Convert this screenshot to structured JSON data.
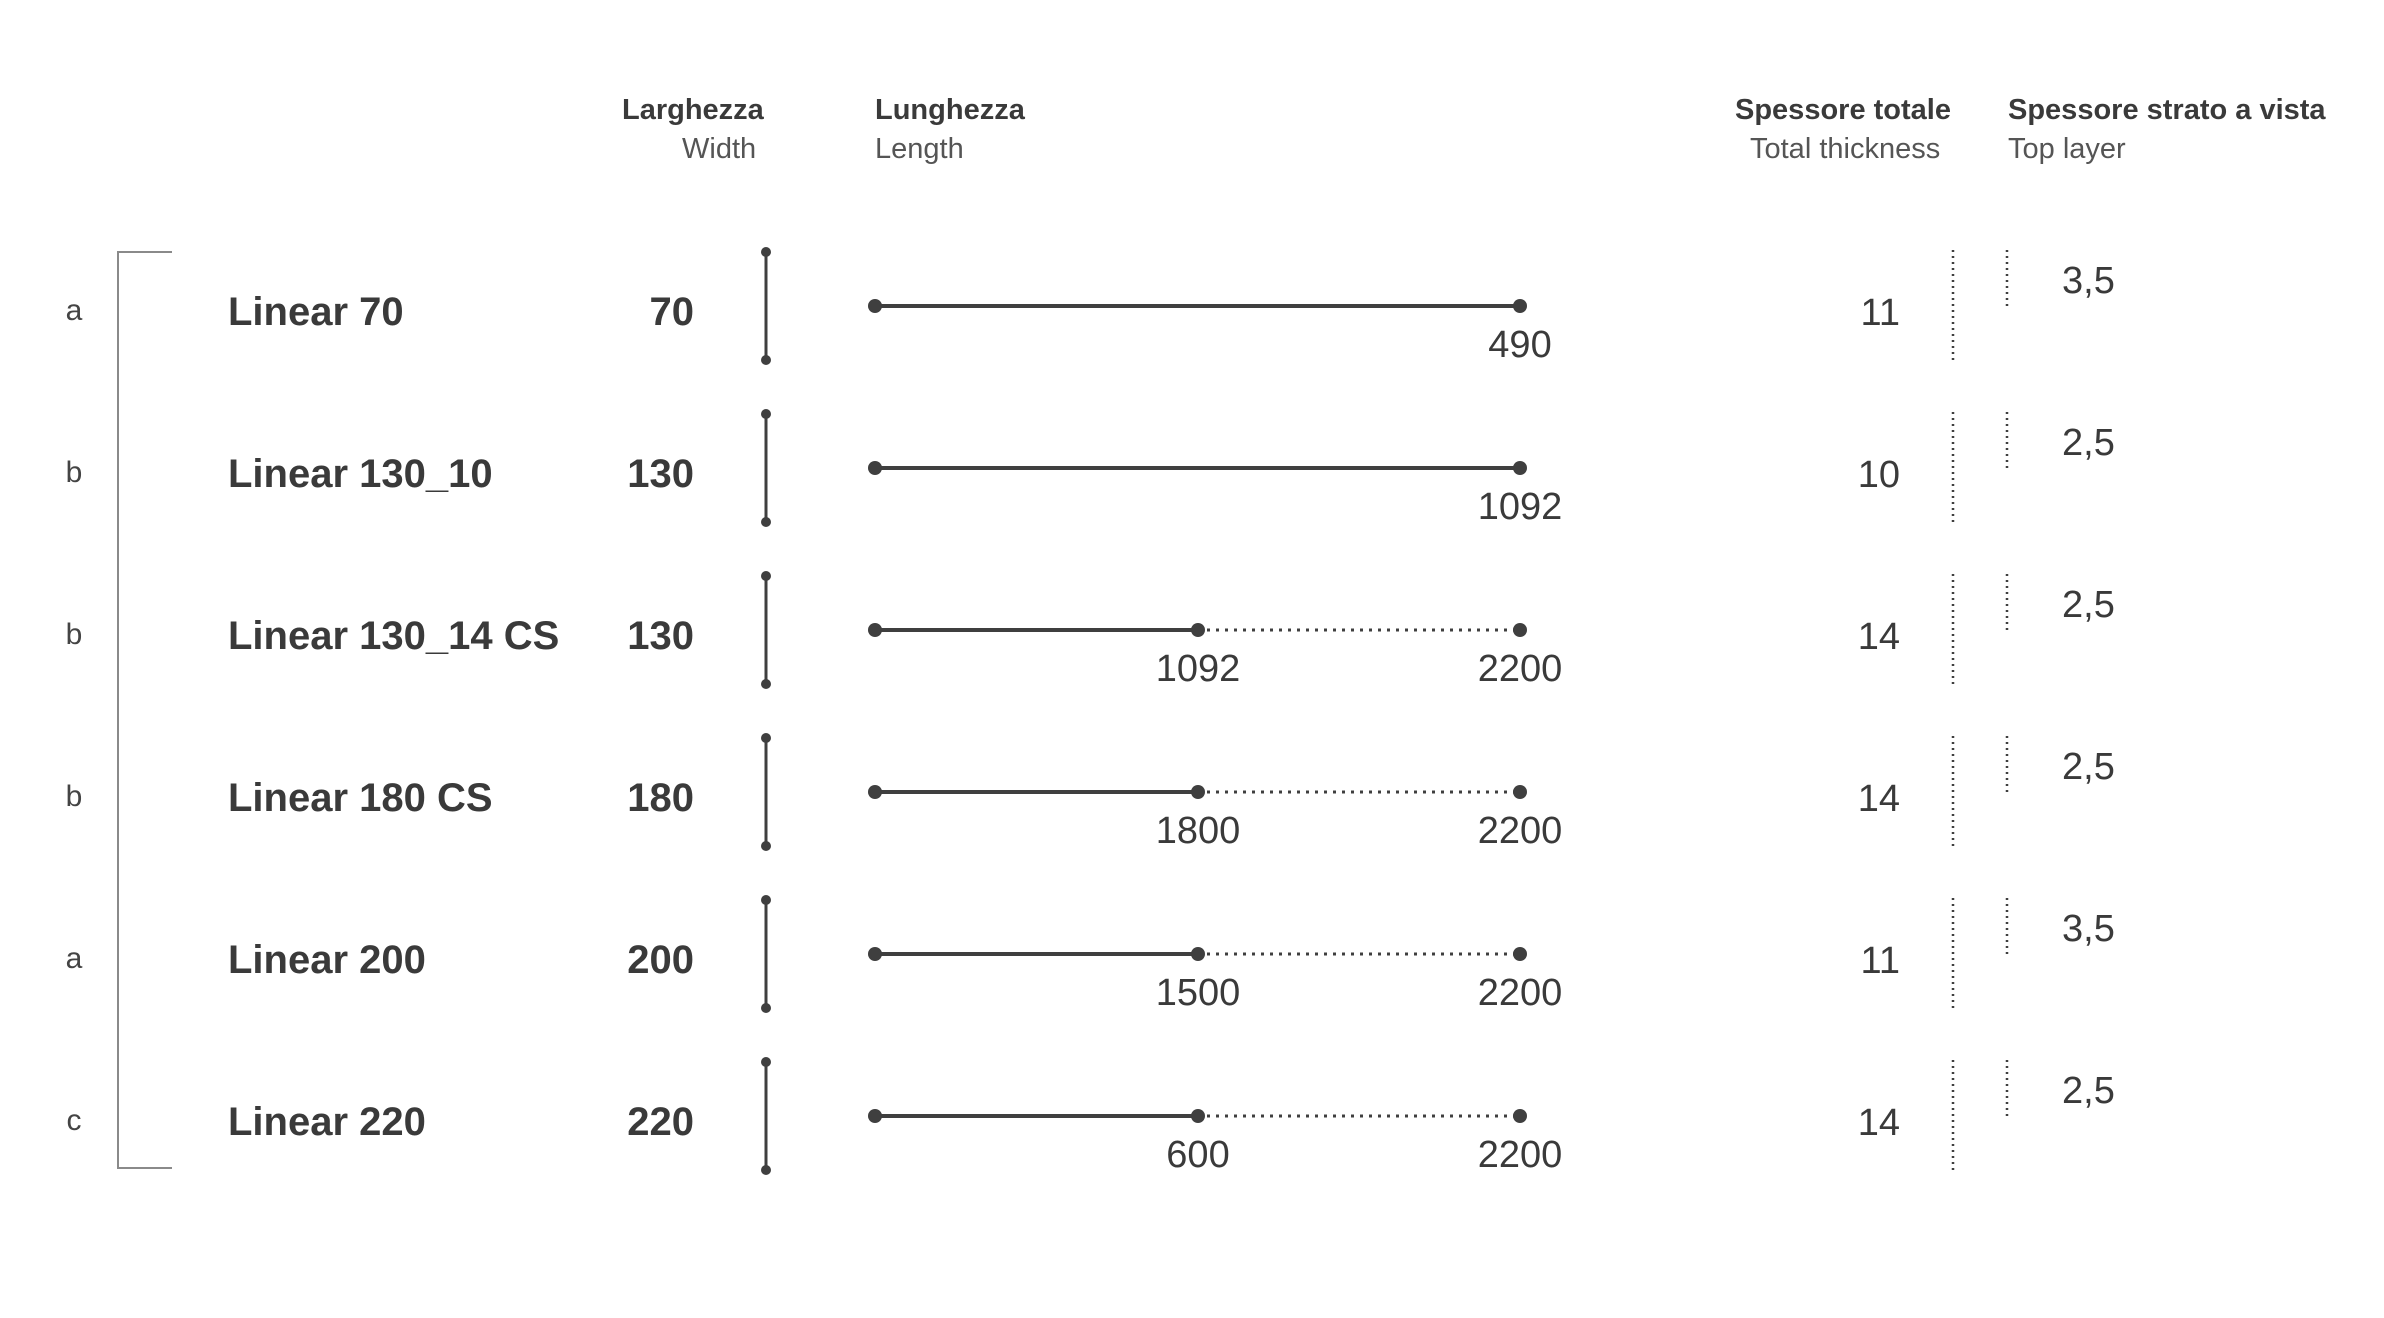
{
  "headers": {
    "width_it": "Larghezza",
    "width_en": "Width",
    "length_it": "Lunghezza",
    "length_en": "Length",
    "thickness_it": "Spessore totale",
    "thickness_en": "Total thickness",
    "toplayer_it": "Spessore strato a vista",
    "toplayer_en": "Top layer"
  },
  "rows": [
    {
      "class": "a",
      "name": "Linear 70",
      "width": "70",
      "len_min": null,
      "len_max": "490",
      "thickness": "11",
      "top_layer": "3,5"
    },
    {
      "class": "b",
      "name": "Linear 130_10",
      "width": "130",
      "len_min": null,
      "len_max": "1092",
      "thickness": "10",
      "top_layer": "2,5"
    },
    {
      "class": "b",
      "name": "Linear 130_14 CS",
      "width": "130",
      "len_min": "1092",
      "len_max": "2200",
      "thickness": "14",
      "top_layer": "2,5"
    },
    {
      "class": "b",
      "name": "Linear 180 CS",
      "width": "180",
      "len_min": "1800",
      "len_max": "2200",
      "thickness": "14",
      "top_layer": "2,5"
    },
    {
      "class": "a",
      "name": "Linear 200",
      "width": "200",
      "len_min": "1500",
      "len_max": "2200",
      "thickness": "11",
      "top_layer": "3,5"
    },
    {
      "class": "c",
      "name": "Linear 220",
      "width": "220",
      "len_min": "600",
      "len_max": "2200",
      "thickness": "14",
      "top_layer": "2,5"
    }
  ]
}
